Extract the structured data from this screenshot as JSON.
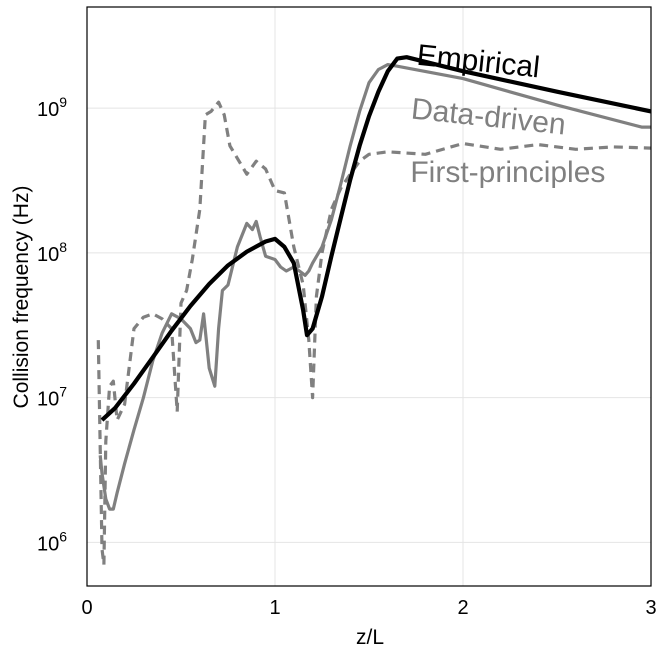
{
  "chart_data": {
    "type": "line",
    "title": "",
    "xlabel": "z/L",
    "ylabel": "Collision frequency (Hz)",
    "xlim": [
      0,
      3
    ],
    "ylim": [
      500000,
      5000000000
    ],
    "yscale": "log",
    "grid": true,
    "xticks": [
      {
        "value": 0,
        "label": "0"
      },
      {
        "value": 1,
        "label": "1"
      },
      {
        "value": 2,
        "label": "2"
      },
      {
        "value": 3,
        "label": "3"
      }
    ],
    "yticks": [
      {
        "value": 1000000,
        "base": "10",
        "exp": "6"
      },
      {
        "value": 10000000,
        "base": "10",
        "exp": "7"
      },
      {
        "value": 100000000,
        "base": "10",
        "exp": "8"
      },
      {
        "value": 1000000000,
        "base": "10",
        "exp": "9"
      }
    ],
    "series": [
      {
        "name": "Empirical",
        "color": "#000000",
        "dash": "solid",
        "x": [
          0.08,
          0.15,
          0.25,
          0.35,
          0.45,
          0.55,
          0.65,
          0.75,
          0.85,
          0.95,
          1.0,
          1.05,
          1.1,
          1.15,
          1.17,
          1.2,
          1.25,
          1.3,
          1.35,
          1.4,
          1.45,
          1.5,
          1.55,
          1.6,
          1.65,
          1.7,
          2.0,
          2.5,
          3.0
        ],
        "y": [
          7000000,
          8500000,
          12500000,
          19000000,
          29000000,
          43000000,
          61000000,
          82000000,
          102000000,
          120000000,
          125000000,
          110000000,
          85000000,
          40000000,
          27000000,
          30000000,
          50000000,
          95000000,
          175000000,
          320000000,
          550000000,
          880000000,
          1300000000,
          1800000000,
          2200000000,
          2250000000,
          1800000000,
          1300000000,
          950000000
        ]
      },
      {
        "name": "Data-driven",
        "color": "#808080",
        "dash": "solid",
        "x": [
          0.07,
          0.08,
          0.1,
          0.12,
          0.14,
          0.16,
          0.2,
          0.25,
          0.3,
          0.35,
          0.4,
          0.45,
          0.5,
          0.55,
          0.58,
          0.6,
          0.62,
          0.65,
          0.68,
          0.7,
          0.72,
          0.75,
          0.8,
          0.85,
          0.88,
          0.9,
          0.92,
          0.95,
          1.0,
          1.03,
          1.06,
          1.1,
          1.13,
          1.16,
          1.18,
          1.2,
          1.25,
          1.3,
          1.35,
          1.4,
          1.45,
          1.5,
          1.55,
          1.6,
          1.65,
          2.0,
          2.5,
          2.95,
          3.0
        ],
        "y": [
          4000000,
          3000000,
          2000000,
          1700000,
          1700000,
          2200000,
          3500000,
          6000000,
          10000000,
          18000000,
          28000000,
          38000000,
          35000000,
          30000000,
          24000000,
          25000000,
          38000000,
          16000000,
          12000000,
          30000000,
          55000000,
          60000000,
          110000000,
          160000000,
          145000000,
          165000000,
          130000000,
          95000000,
          90000000,
          80000000,
          75000000,
          80000000,
          75000000,
          70000000,
          75000000,
          85000000,
          110000000,
          170000000,
          300000000,
          550000000,
          950000000,
          1500000000,
          1850000000,
          2000000000,
          1950000000,
          1600000000,
          1050000000,
          740000000,
          740000000
        ]
      },
      {
        "name": "First-principles",
        "color": "#808080",
        "dash": "dashed",
        "x": [
          0.06,
          0.08,
          0.09,
          0.1,
          0.12,
          0.14,
          0.16,
          0.2,
          0.25,
          0.3,
          0.35,
          0.4,
          0.45,
          0.48,
          0.5,
          0.53,
          0.56,
          0.6,
          0.63,
          0.66,
          0.7,
          0.73,
          0.76,
          0.8,
          0.85,
          0.9,
          0.95,
          1.0,
          1.05,
          1.1,
          1.15,
          1.18,
          1.2,
          1.22,
          1.25,
          1.3,
          1.35,
          1.4,
          1.45,
          1.5,
          1.6,
          1.8,
          2.0,
          2.2,
          2.4,
          2.6,
          2.8,
          3.0
        ],
        "y": [
          25000000,
          900000,
          700000,
          5000000,
          12000000,
          13000000,
          7000000,
          9000000,
          30000000,
          36000000,
          38000000,
          35000000,
          30000000,
          8000000,
          45000000,
          55000000,
          90000000,
          200000000,
          900000000,
          950000000,
          1100000000,
          900000000,
          550000000,
          450000000,
          350000000,
          430000000,
          380000000,
          270000000,
          260000000,
          110000000,
          60000000,
          25000000,
          10000000,
          50000000,
          100000000,
          200000000,
          280000000,
          350000000,
          430000000,
          480000000,
          500000000,
          480000000,
          570000000,
          520000000,
          560000000,
          520000000,
          540000000,
          530000000
        ]
      }
    ]
  }
}
